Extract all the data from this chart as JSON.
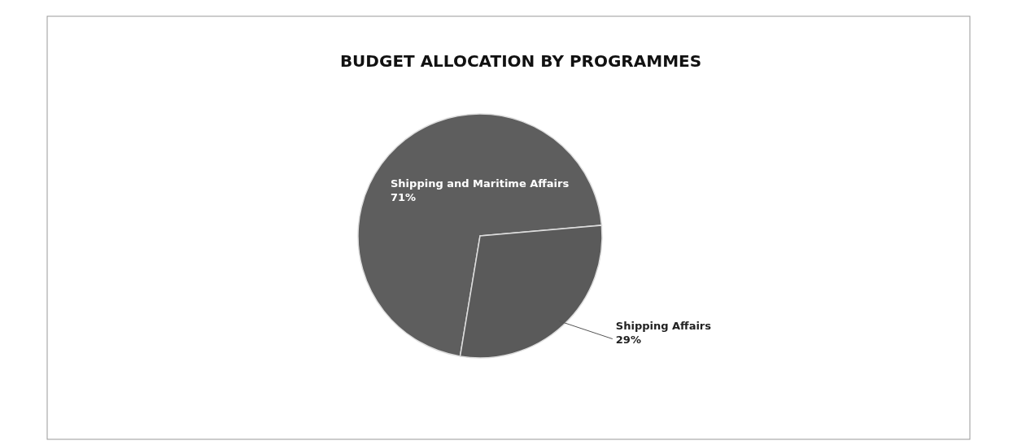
{
  "chart_data": {
    "type": "pie",
    "title": "BUDGET ALLOCATION BY PROGRAMMES",
    "categories": [
      "Shipping and Maritime Affairs",
      "Shipping Affairs"
    ],
    "values": [
      71,
      29
    ],
    "colors": [
      "#5e5e5e",
      "#5a5a5a"
    ],
    "value_labels": [
      "71%",
      "29%"
    ],
    "legend": false
  }
}
